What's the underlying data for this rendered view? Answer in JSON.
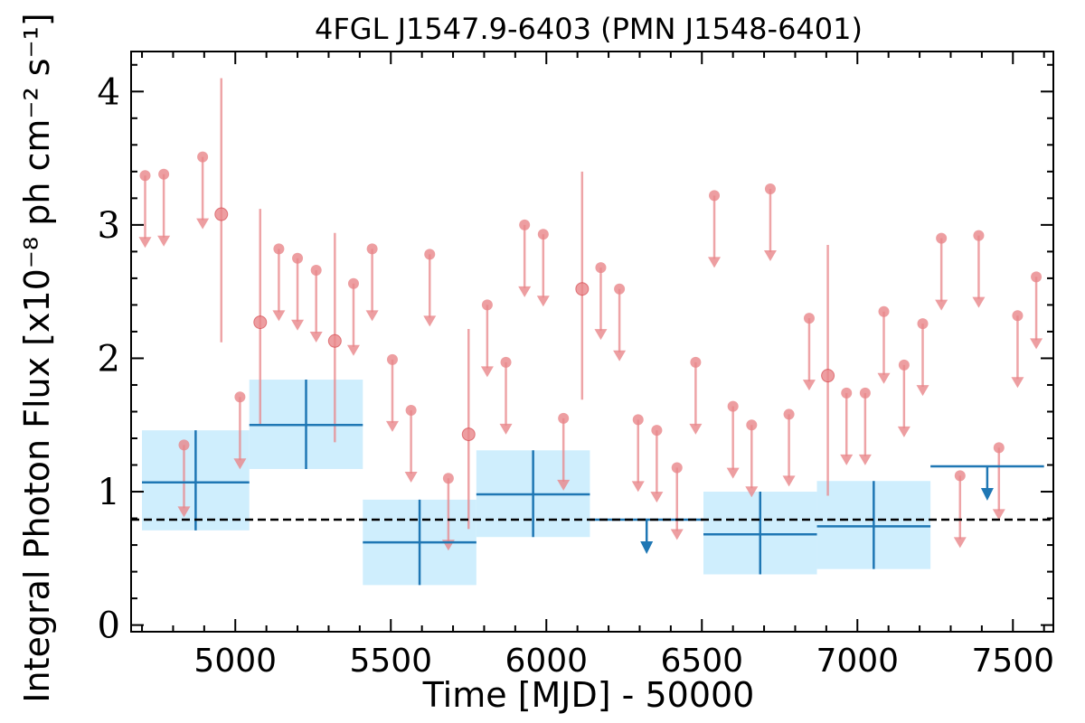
{
  "chart_data": {
    "type": "scatter",
    "title": "4FGL J1547.9-6403 (PMN J1548-6401)",
    "xlabel": "Time [MJD] - 50000",
    "ylabel": "Integral Photon Flux [x10⁻⁸ ph cm⁻² s⁻¹]",
    "xlim": [
      4665,
      7630
    ],
    "ylim": [
      -0.05,
      4.3
    ],
    "x_ticks": [
      "5000",
      "5500",
      "6000",
      "6500",
      "7000",
      "7500"
    ],
    "y_ticks": [
      "0",
      "1",
      "2",
      "3",
      "4"
    ],
    "grid": false,
    "reference_line": {
      "y": 0.79,
      "style": "dashed",
      "color": "#000000"
    },
    "colors": {
      "coarse": "#1f77b4",
      "coarse_band": "#cfeefd",
      "fine": "#e8868a"
    },
    "series": [
      {
        "bins": [
          {
            "x0": 4700,
            "x1": 5045,
            "y": 1.07,
            "ylo": 0.71,
            "yhi": 1.46
          },
          {
            "x0": 5045,
            "x1": 5410,
            "y": 1.5,
            "ylo": 1.17,
            "yhi": 1.84
          },
          {
            "x0": 5410,
            "x1": 5775,
            "y": 0.62,
            "ylo": 0.3,
            "yhi": 0.94
          },
          {
            "x0": 5775,
            "x1": 6140,
            "y": 0.98,
            "ylo": 0.66,
            "yhi": 1.31
          },
          {
            "x0": 6505,
            "x1": 6870,
            "y": 0.68,
            "ylo": 0.38,
            "yhi": 1.0
          },
          {
            "x0": 6870,
            "x1": 7235,
            "y": 0.74,
            "ylo": 0.42,
            "yhi": 1.08
          }
        ],
        "upper_limits": [
          {
            "x0": 6140,
            "x1": 6505,
            "y": 0.79
          },
          {
            "x0": 7235,
            "x1": 7600,
            "y": 1.19
          }
        ]
      },
      {
        "detections": [
          {
            "x": 4955,
            "y": 3.08,
            "ylo": 2.12,
            "yhi": 4.1
          },
          {
            "x": 5080,
            "y": 2.27,
            "ylo": 1.5,
            "yhi": 3.12
          },
          {
            "x": 5320,
            "y": 2.13,
            "ylo": 1.37,
            "yhi": 2.94
          },
          {
            "x": 5750,
            "y": 1.43,
            "ylo": 0.72,
            "yhi": 2.22
          },
          {
            "x": 6115,
            "y": 2.52,
            "ylo": 1.69,
            "yhi": 3.4
          },
          {
            "x": 6905,
            "y": 1.87,
            "ylo": 0.97,
            "yhi": 2.85
          }
        ],
        "upper_limits": [
          {
            "x": 4710,
            "y": 3.37
          },
          {
            "x": 4770,
            "y": 3.38
          },
          {
            "x": 4835,
            "y": 1.35
          },
          {
            "x": 4895,
            "y": 3.51
          },
          {
            "x": 5015,
            "y": 1.71
          },
          {
            "x": 5140,
            "y": 2.82
          },
          {
            "x": 5200,
            "y": 2.75
          },
          {
            "x": 5260,
            "y": 2.66
          },
          {
            "x": 5380,
            "y": 2.56
          },
          {
            "x": 5440,
            "y": 2.82
          },
          {
            "x": 5505,
            "y": 1.99
          },
          {
            "x": 5565,
            "y": 1.61
          },
          {
            "x": 5625,
            "y": 2.78
          },
          {
            "x": 5685,
            "y": 1.1
          },
          {
            "x": 5810,
            "y": 2.4
          },
          {
            "x": 5870,
            "y": 1.97
          },
          {
            "x": 5930,
            "y": 3.0
          },
          {
            "x": 5990,
            "y": 2.93
          },
          {
            "x": 6055,
            "y": 1.55
          },
          {
            "x": 6175,
            "y": 2.68
          },
          {
            "x": 6235,
            "y": 2.52
          },
          {
            "x": 6295,
            "y": 1.54
          },
          {
            "x": 6355,
            "y": 1.46
          },
          {
            "x": 6420,
            "y": 1.18
          },
          {
            "x": 6480,
            "y": 1.97
          },
          {
            "x": 6540,
            "y": 3.22
          },
          {
            "x": 6600,
            "y": 1.64
          },
          {
            "x": 6660,
            "y": 1.5
          },
          {
            "x": 6720,
            "y": 3.27
          },
          {
            "x": 6780,
            "y": 1.58
          },
          {
            "x": 6845,
            "y": 2.3
          },
          {
            "x": 6965,
            "y": 1.74
          },
          {
            "x": 7025,
            "y": 1.74
          },
          {
            "x": 7085,
            "y": 2.35
          },
          {
            "x": 7150,
            "y": 1.95
          },
          {
            "x": 7210,
            "y": 2.26
          },
          {
            "x": 7270,
            "y": 2.9
          },
          {
            "x": 7330,
            "y": 1.12
          },
          {
            "x": 7390,
            "y": 2.92
          },
          {
            "x": 7455,
            "y": 1.33
          },
          {
            "x": 7515,
            "y": 2.32
          },
          {
            "x": 7575,
            "y": 2.61
          }
        ]
      }
    ]
  }
}
